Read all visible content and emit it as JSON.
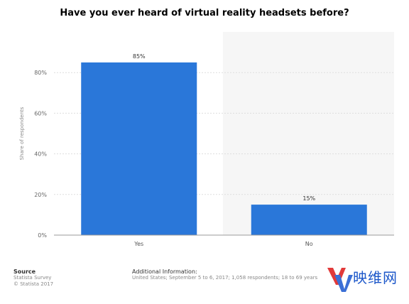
{
  "title": "Have you ever heard of virtual reality headsets before?",
  "chart_data": {
    "type": "bar",
    "categories": [
      "Yes",
      "No"
    ],
    "values": [
      85,
      15
    ],
    "value_labels": [
      "85%",
      "15%"
    ],
    "ylabel": "Share of respondents",
    "ylim": [
      0,
      100
    ],
    "yticks": [
      0,
      20,
      40,
      60,
      80
    ],
    "ytick_labels": [
      "0%",
      "20%",
      "40%",
      "60%",
      "80%"
    ],
    "bar_color": "#2a77d9",
    "grid": true
  },
  "footer": {
    "source_heading": "Source",
    "source_lines": [
      "Statista Survey",
      "© Statista 2017"
    ],
    "info_heading": "Additional Information:",
    "info_text": "United States; September 5 to 6, 2017; 1,058 respondents; 18 to 69 years"
  },
  "watermark": {
    "text": "映维网",
    "logo_letters": "YV"
  }
}
